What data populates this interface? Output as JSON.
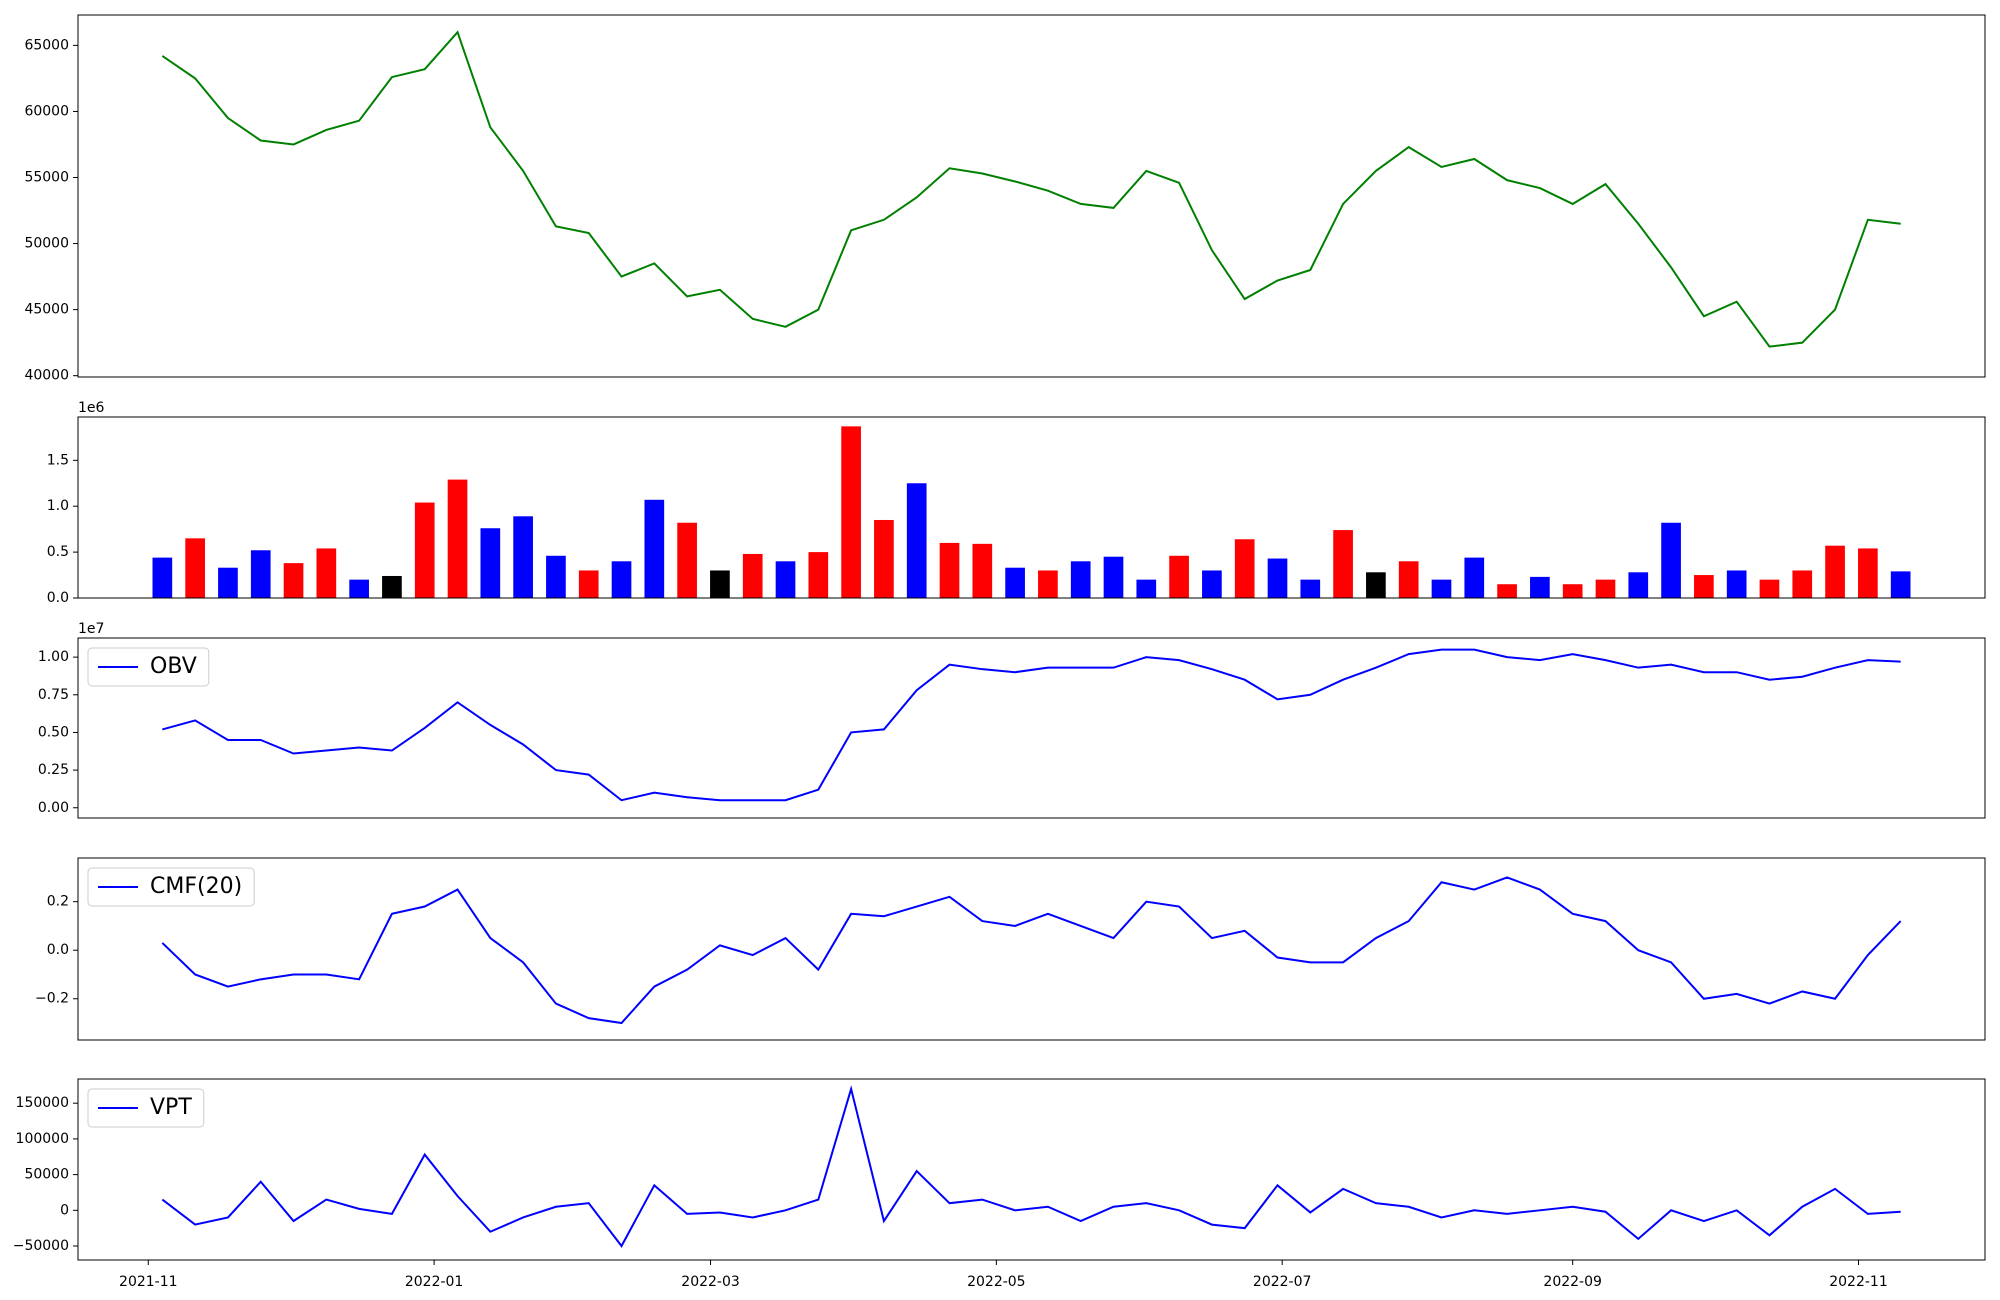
{
  "chart_data": [
    {
      "type": "line",
      "x": [
        "2021-11-04",
        "2021-11-11",
        "2021-11-18",
        "2021-11-25",
        "2021-12-02",
        "2021-12-09",
        "2021-12-16",
        "2021-12-23",
        "2021-12-30",
        "2022-01-06",
        "2022-01-13",
        "2022-01-20",
        "2022-01-27",
        "2022-02-03",
        "2022-02-10",
        "2022-02-17",
        "2022-02-24",
        "2022-03-03",
        "2022-03-10",
        "2022-03-17",
        "2022-03-24",
        "2022-03-31",
        "2022-04-07",
        "2022-04-14",
        "2022-04-21",
        "2022-04-28",
        "2022-05-05",
        "2022-05-12",
        "2022-05-19",
        "2022-05-26",
        "2022-06-02",
        "2022-06-09",
        "2022-06-16",
        "2022-06-23",
        "2022-06-30",
        "2022-07-07",
        "2022-07-14",
        "2022-07-21",
        "2022-07-28",
        "2022-08-04",
        "2022-08-11",
        "2022-08-18",
        "2022-08-25",
        "2022-09-01",
        "2022-09-08",
        "2022-09-15",
        "2022-09-22",
        "2022-09-29",
        "2022-10-06",
        "2022-10-13",
        "2022-10-20",
        "2022-10-27",
        "2022-11-03",
        "2022-11-10"
      ],
      "series": [
        {
          "color": "#008000",
          "values": [
            64200,
            62500,
            59500,
            57800,
            57500,
            58600,
            59300,
            62600,
            63200,
            66000,
            58800,
            55500,
            51300,
            50800,
            47500,
            48500,
            46000,
            46500,
            44300,
            43700,
            45000,
            51000,
            51800,
            53500,
            55700,
            55300,
            54700,
            54000,
            53000,
            52700,
            55500,
            54600,
            49500,
            45800,
            47200,
            48000,
            53000,
            55500,
            57300,
            55800,
            56400,
            54800,
            54200,
            53000,
            54500,
            51500,
            48200,
            44500,
            45600,
            42200,
            42500,
            45000,
            51800,
            51500
          ]
        }
      ],
      "xlim": [
        "2021-10-17",
        "2022-11-28"
      ],
      "ylim": [
        39900,
        67300
      ],
      "yticks": [
        40000,
        45000,
        50000,
        55000,
        60000,
        65000
      ]
    },
    {
      "type": "bar",
      "x": [
        "2021-11-04",
        "2021-11-11",
        "2021-11-18",
        "2021-11-25",
        "2021-12-02",
        "2021-12-09",
        "2021-12-16",
        "2021-12-23",
        "2021-12-30",
        "2022-01-06",
        "2022-01-13",
        "2022-01-20",
        "2022-01-27",
        "2022-02-03",
        "2022-02-10",
        "2022-02-17",
        "2022-02-24",
        "2022-03-03",
        "2022-03-10",
        "2022-03-17",
        "2022-03-24",
        "2022-03-31",
        "2022-04-07",
        "2022-04-14",
        "2022-04-21",
        "2022-04-28",
        "2022-05-05",
        "2022-05-12",
        "2022-05-19",
        "2022-05-26",
        "2022-06-02",
        "2022-06-09",
        "2022-06-16",
        "2022-06-23",
        "2022-06-30",
        "2022-07-07",
        "2022-07-14",
        "2022-07-21",
        "2022-07-28",
        "2022-08-04",
        "2022-08-11",
        "2022-08-18",
        "2022-08-25",
        "2022-09-01",
        "2022-09-08",
        "2022-09-15",
        "2022-09-22",
        "2022-09-29",
        "2022-10-06",
        "2022-10-13",
        "2022-10-20",
        "2022-10-27",
        "2022-11-03",
        "2022-11-10"
      ],
      "series": [
        {
          "values": [
            440000,
            650000,
            330000,
            520000,
            380000,
            540000,
            200000,
            240000,
            1040000,
            1290000,
            760000,
            890000,
            460000,
            300000,
            400000,
            1070000,
            820000,
            300000,
            480000,
            400000,
            500000,
            1870000,
            850000,
            1250000,
            600000,
            590000,
            330000,
            300000,
            400000,
            450000,
            200000,
            460000,
            300000,
            640000,
            430000,
            200000,
            740000,
            280000,
            400000,
            200000,
            440000,
            150000,
            230000,
            150000,
            200000,
            280000,
            820000,
            250000,
            300000,
            200000,
            300000,
            570000,
            540000,
            290000
          ],
          "colors": [
            "#0000ff",
            "#ff0000",
            "#0000ff",
            "#0000ff",
            "#ff0000",
            "#ff0000",
            "#0000ff",
            "#000000",
            "#ff0000",
            "#ff0000",
            "#0000ff",
            "#0000ff",
            "#0000ff",
            "#ff0000",
            "#0000ff",
            "#0000ff",
            "#ff0000",
            "#000000",
            "#ff0000",
            "#0000ff",
            "#ff0000",
            "#ff0000",
            "#ff0000",
            "#0000ff",
            "#ff0000",
            "#ff0000",
            "#0000ff",
            "#ff0000",
            "#0000ff",
            "#0000ff",
            "#0000ff",
            "#ff0000",
            "#0000ff",
            "#ff0000",
            "#0000ff",
            "#0000ff",
            "#ff0000",
            "#000000",
            "#ff0000",
            "#0000ff",
            "#0000ff",
            "#ff0000",
            "#0000ff",
            "#ff0000",
            "#ff0000",
            "#0000ff",
            "#0000ff",
            "#ff0000",
            "#0000ff",
            "#ff0000",
            "#ff0000",
            "#ff0000",
            "#ff0000",
            "#0000ff"
          ]
        }
      ],
      "xlim": [
        "2021-10-17",
        "2022-11-28"
      ],
      "ylim": [
        0,
        1972000
      ],
      "yticks": [
        {
          "value": 0,
          "label": "0.0"
        },
        {
          "value": 500000,
          "label": "0.5"
        },
        {
          "value": 1000000,
          "label": "1.0"
        },
        {
          "value": 1500000,
          "label": "1.5"
        }
      ],
      "offset_label": "1e6"
    },
    {
      "type": "line",
      "x": [
        "2021-11-04",
        "2021-11-11",
        "2021-11-18",
        "2021-11-25",
        "2021-12-02",
        "2021-12-09",
        "2021-12-16",
        "2021-12-23",
        "2021-12-30",
        "2022-01-06",
        "2022-01-13",
        "2022-01-20",
        "2022-01-27",
        "2022-02-03",
        "2022-02-10",
        "2022-02-17",
        "2022-02-24",
        "2022-03-03",
        "2022-03-10",
        "2022-03-17",
        "2022-03-24",
        "2022-03-31",
        "2022-04-07",
        "2022-04-14",
        "2022-04-21",
        "2022-04-28",
        "2022-05-05",
        "2022-05-12",
        "2022-05-19",
        "2022-05-26",
        "2022-06-02",
        "2022-06-09",
        "2022-06-16",
        "2022-06-23",
        "2022-06-30",
        "2022-07-07",
        "2022-07-14",
        "2022-07-21",
        "2022-07-28",
        "2022-08-04",
        "2022-08-11",
        "2022-08-18",
        "2022-08-25",
        "2022-09-01",
        "2022-09-08",
        "2022-09-15",
        "2022-09-22",
        "2022-09-29",
        "2022-10-06",
        "2022-10-13",
        "2022-10-20",
        "2022-10-27",
        "2022-11-03",
        "2022-11-10"
      ],
      "series": [
        {
          "name": "OBV",
          "color": "#0000ff",
          "values": [
            5200000,
            5800000,
            4500000,
            4500000,
            3600000,
            3800000,
            4000000,
            3800000,
            5300000,
            7000000,
            5500000,
            4200000,
            2500000,
            2200000,
            500000,
            1000000,
            700000,
            500000,
            500000,
            500000,
            1200000,
            5000000,
            5200000,
            7800000,
            9500000,
            9200000,
            9000000,
            9300000,
            9300000,
            9300000,
            10000000,
            9800000,
            9200000,
            8500000,
            7200000,
            7500000,
            8500000,
            9300000,
            10200000,
            10500000,
            10500000,
            10000000,
            9800000,
            10200000,
            9800000,
            9300000,
            9500000,
            9000000,
            9000000,
            8500000,
            8700000,
            9300000,
            9800000,
            9700000
          ]
        }
      ],
      "legend": "upper left",
      "xlim": [
        "2021-10-17",
        "2022-11-28"
      ],
      "ylim": [
        -680000,
        11270000
      ],
      "yticks": [
        {
          "value": 0,
          "label": "0.00"
        },
        {
          "value": 2500000,
          "label": "0.25"
        },
        {
          "value": 5000000,
          "label": "0.50"
        },
        {
          "value": 7500000,
          "label": "0.75"
        },
        {
          "value": 10000000,
          "label": "1.00"
        }
      ],
      "offset_label": "1e7"
    },
    {
      "type": "line",
      "x": [
        "2021-11-04",
        "2021-11-11",
        "2021-11-18",
        "2021-11-25",
        "2021-12-02",
        "2021-12-09",
        "2021-12-16",
        "2021-12-23",
        "2021-12-30",
        "2022-01-06",
        "2022-01-13",
        "2022-01-20",
        "2022-01-27",
        "2022-02-03",
        "2022-02-10",
        "2022-02-17",
        "2022-02-24",
        "2022-03-03",
        "2022-03-10",
        "2022-03-17",
        "2022-03-24",
        "2022-03-31",
        "2022-04-07",
        "2022-04-14",
        "2022-04-21",
        "2022-04-28",
        "2022-05-05",
        "2022-05-12",
        "2022-05-19",
        "2022-05-26",
        "2022-06-02",
        "2022-06-09",
        "2022-06-16",
        "2022-06-23",
        "2022-06-30",
        "2022-07-07",
        "2022-07-14",
        "2022-07-21",
        "2022-07-28",
        "2022-08-04",
        "2022-08-11",
        "2022-08-18",
        "2022-08-25",
        "2022-09-01",
        "2022-09-08",
        "2022-09-15",
        "2022-09-22",
        "2022-09-29",
        "2022-10-06",
        "2022-10-13",
        "2022-10-20",
        "2022-10-27",
        "2022-11-03",
        "2022-11-10"
      ],
      "series": [
        {
          "name": "CMF(20)",
          "color": "#0000ff",
          "values": [
            0.03,
            -0.1,
            -0.15,
            -0.12,
            -0.1,
            -0.1,
            -0.12,
            0.15,
            0.18,
            0.25,
            0.05,
            -0.05,
            -0.22,
            -0.28,
            -0.3,
            -0.15,
            -0.08,
            0.02,
            -0.02,
            0.05,
            -0.08,
            0.15,
            0.14,
            0.18,
            0.22,
            0.12,
            0.1,
            0.15,
            0.1,
            0.05,
            0.2,
            0.18,
            0.05,
            0.08,
            -0.03,
            -0.05,
            -0.05,
            0.05,
            0.12,
            0.28,
            0.25,
            0.3,
            0.25,
            0.15,
            0.12,
            0.0,
            -0.05,
            -0.2,
            -0.18,
            -0.22,
            -0.17,
            -0.2,
            -0.02,
            0.12
          ]
        }
      ],
      "legend": "upper left",
      "xlim": [
        "2021-10-17",
        "2022-11-28"
      ],
      "ylim": [
        -0.37,
        0.38
      ],
      "yticks": [
        {
          "value": -0.2,
          "label": "−0.2"
        },
        {
          "value": 0,
          "label": "0.0"
        },
        {
          "value": 0.2,
          "label": "0.2"
        }
      ]
    },
    {
      "type": "line",
      "x": [
        "2021-11-04",
        "2021-11-11",
        "2021-11-18",
        "2021-11-25",
        "2021-12-02",
        "2021-12-09",
        "2021-12-16",
        "2021-12-23",
        "2021-12-30",
        "2022-01-06",
        "2022-01-13",
        "2022-01-20",
        "2022-01-27",
        "2022-02-03",
        "2022-02-10",
        "2022-02-17",
        "2022-02-24",
        "2022-03-03",
        "2022-03-10",
        "2022-03-17",
        "2022-03-24",
        "2022-03-31",
        "2022-04-07",
        "2022-04-14",
        "2022-04-21",
        "2022-04-28",
        "2022-05-05",
        "2022-05-12",
        "2022-05-19",
        "2022-05-26",
        "2022-06-02",
        "2022-06-09",
        "2022-06-16",
        "2022-06-23",
        "2022-06-30",
        "2022-07-07",
        "2022-07-14",
        "2022-07-21",
        "2022-07-28",
        "2022-08-04",
        "2022-08-11",
        "2022-08-18",
        "2022-08-25",
        "2022-09-01",
        "2022-09-08",
        "2022-09-15",
        "2022-09-22",
        "2022-09-29",
        "2022-10-06",
        "2022-10-13",
        "2022-10-20",
        "2022-10-27",
        "2022-11-03",
        "2022-11-10"
      ],
      "series": [
        {
          "name": "VPT",
          "color": "#0000ff",
          "values": [
            15000,
            -20000,
            -10000,
            40000,
            -15000,
            15000,
            2000,
            -5000,
            78000,
            20000,
            -30000,
            -10000,
            5000,
            10000,
            -50000,
            35000,
            -5000,
            -3000,
            -10000,
            0,
            15000,
            170000,
            -15000,
            55000,
            10000,
            15000,
            0,
            5000,
            -15000,
            5000,
            10000,
            0,
            -20000,
            -25000,
            35000,
            -3000,
            30000,
            10000,
            5000,
            -10000,
            0,
            -5000,
            0,
            5000,
            -2000,
            -40000,
            0,
            -15000,
            0,
            -35000,
            5000,
            30000,
            -5000,
            -2000
          ]
        }
      ],
      "legend": "upper left",
      "xlim": [
        "2021-10-17",
        "2022-11-28"
      ],
      "ylim": [
        -69600,
        183900
      ],
      "yticks": [
        {
          "value": -50000,
          "label": "−50000"
        },
        {
          "value": 0,
          "label": "0"
        },
        {
          "value": 50000,
          "label": "50000"
        },
        {
          "value": 100000,
          "label": "100000"
        },
        {
          "value": 150000,
          "label": "150000"
        }
      ],
      "xticks": [
        {
          "value": "2021-11-01",
          "label": "2021-11"
        },
        {
          "value": "2022-01-01",
          "label": "2022-01"
        },
        {
          "value": "2022-03-01",
          "label": "2022-03"
        },
        {
          "value": "2022-05-01",
          "label": "2022-05"
        },
        {
          "value": "2022-07-01",
          "label": "2022-07"
        },
        {
          "value": "2022-09-01",
          "label": "2022-09"
        },
        {
          "value": "2022-11-01",
          "label": "2022-11"
        }
      ]
    }
  ]
}
